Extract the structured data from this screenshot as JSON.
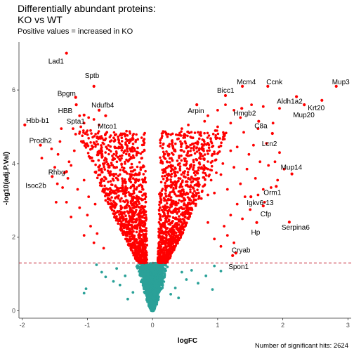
{
  "chart_data": {
    "type": "scatter",
    "title_lines": [
      "Differentially abundant proteins:",
      "KO vs WT"
    ],
    "subtitle": "Positive values = increased in KO",
    "caption": "Number of significant hits: 2624",
    "xlabel": "logFC",
    "ylabel": "-log10(adj.P.Val)",
    "xlim": [
      -2.05,
      3.05
    ],
    "ylim": [
      -0.2,
      7.3
    ],
    "x_ticks": [
      -2,
      -1,
      0,
      1,
      2,
      3
    ],
    "y_ticks": [
      0,
      2,
      4,
      6
    ],
    "threshold": 1.3,
    "colors": {
      "significant": "#ff0000",
      "not_significant": "#2aa198",
      "threshold_line": "#c21b2d"
    },
    "labeled_points": [
      {
        "label": "Lad1",
        "x": -1.32,
        "y": 7.0
      },
      {
        "label": "Sptb",
        "x": -0.9,
        "y": 6.1
      },
      {
        "label": "Bpgm",
        "x": -1.18,
        "y": 5.8
      },
      {
        "label": "HBB",
        "x": -1.17,
        "y": 5.6
      },
      {
        "label": "Ndufb4",
        "x": -0.82,
        "y": 5.45
      },
      {
        "label": "Spta1",
        "x": -1.05,
        "y": 5.32
      },
      {
        "label": "Mtco1",
        "x": -0.72,
        "y": 5.3
      },
      {
        "label": "Hbb-b1",
        "x": -1.96,
        "y": 5.05
      },
      {
        "label": "Prodh2",
        "x": -1.72,
        "y": 4.5
      },
      {
        "label": "Rhbg",
        "x": -1.32,
        "y": 3.78
      },
      {
        "label": "Isoc2b",
        "x": -1.54,
        "y": 3.65
      },
      {
        "label": "Bicc1",
        "x": 1.12,
        "y": 5.85
      },
      {
        "label": "Arpin",
        "x": 0.68,
        "y": 5.6
      },
      {
        "label": "Hmgb2",
        "x": 1.37,
        "y": 5.5
      },
      {
        "label": "Mcm4",
        "x": 1.38,
        "y": 6.1
      },
      {
        "label": "Ccnk",
        "x": 1.77,
        "y": 6.1
      },
      {
        "label": "Aldh1a2",
        "x": 2.21,
        "y": 5.82
      },
      {
        "label": "Mup3",
        "x": 2.82,
        "y": 6.1
      },
      {
        "label": "Krt20",
        "x": 2.6,
        "y": 5.72
      },
      {
        "label": "Mup20",
        "x": 2.33,
        "y": 5.6
      },
      {
        "label": "C8a",
        "x": 1.63,
        "y": 5.15
      },
      {
        "label": "Lcn2",
        "x": 1.84,
        "y": 4.82
      },
      {
        "label": "Mup14",
        "x": 2.14,
        "y": 3.72
      },
      {
        "label": "Orm1",
        "x": 1.9,
        "y": 3.38
      },
      {
        "label": "Igkv6-13",
        "x": 1.51,
        "y": 3.1
      },
      {
        "label": "Cfp",
        "x": 1.7,
        "y": 2.85
      },
      {
        "label": "Serpina6",
        "x": 2.1,
        "y": 2.41
      },
      {
        "label": "Hp",
        "x": 1.6,
        "y": 2.4
      },
      {
        "label": "Cryab",
        "x": 1.28,
        "y": 1.57
      },
      {
        "label": "Spon1",
        "x": 1.23,
        "y": 1.5
      }
    ],
    "significant_points": [
      [
        -1.7,
        4.15
      ],
      [
        -1.55,
        4.4
      ],
      [
        -1.45,
        4.25
      ],
      [
        -1.5,
        3.9
      ],
      [
        -1.35,
        3.75
      ],
      [
        -1.42,
        4.6
      ],
      [
        -1.38,
        3.35
      ],
      [
        -1.3,
        3.6
      ],
      [
        -1.28,
        4.05
      ],
      [
        -1.25,
        3.95
      ],
      [
        -1.2,
        4.35
      ],
      [
        -1.18,
        4.8
      ],
      [
        -1.1,
        5.0
      ],
      [
        -1.05,
        5.1
      ],
      [
        -1.0,
        4.5
      ],
      [
        -0.95,
        4.9
      ],
      [
        -0.9,
        5.2
      ],
      [
        -0.85,
        4.7
      ],
      [
        -0.82,
        5.05
      ],
      [
        -0.8,
        4.3
      ],
      [
        -0.7,
        4.85
      ],
      [
        -0.65,
        4.6
      ],
      [
        -0.6,
        4.15
      ],
      [
        -1.15,
        3.3
      ],
      [
        -1.05,
        3.55
      ],
      [
        -0.98,
        3.1
      ],
      [
        -1.12,
        2.8
      ],
      [
        -1.0,
        2.6
      ],
      [
        -0.88,
        2.9
      ],
      [
        -0.78,
        3.4
      ],
      [
        -0.72,
        3.0
      ],
      [
        -0.95,
        2.3
      ],
      [
        -1.25,
        2.55
      ],
      [
        -1.32,
        2.95
      ],
      [
        -1.05,
        2.05
      ],
      [
        -0.85,
        2.1
      ],
      [
        -0.9,
        1.85
      ],
      [
        -0.75,
        1.7
      ],
      [
        -0.62,
        3.7
      ],
      [
        -0.58,
        4.45
      ],
      [
        -0.55,
        3.9
      ],
      [
        -0.5,
        4.2
      ],
      [
        -1.12,
        5.3
      ],
      [
        -0.98,
        5.25
      ],
      [
        -1.22,
        4.95
      ],
      [
        -1.4,
        4.95
      ],
      [
        -1.46,
        3.45
      ],
      [
        -1.48,
        2.95
      ],
      [
        0.55,
        5.05
      ],
      [
        0.62,
        4.7
      ],
      [
        0.7,
        4.85
      ],
      [
        0.8,
        5.15
      ],
      [
        0.9,
        4.6
      ],
      [
        1.0,
        5.0
      ],
      [
        1.1,
        4.75
      ],
      [
        1.2,
        5.1
      ],
      [
        1.3,
        4.45
      ],
      [
        1.4,
        4.85
      ],
      [
        1.48,
        4.25
      ],
      [
        1.55,
        4.5
      ],
      [
        1.62,
        4.95
      ],
      [
        1.65,
        4.05
      ],
      [
        1.58,
        3.6
      ],
      [
        1.45,
        3.85
      ],
      [
        1.35,
        3.45
      ],
      [
        1.25,
        3.9
      ],
      [
        1.15,
        3.3
      ],
      [
        1.05,
        3.7
      ],
      [
        0.95,
        3.2
      ],
      [
        1.3,
        2.9
      ],
      [
        1.42,
        3.1
      ],
      [
        1.2,
        2.6
      ],
      [
        1.1,
        2.3
      ],
      [
        1.38,
        2.5
      ],
      [
        1.5,
        2.75
      ],
      [
        1.78,
        3.95
      ],
      [
        1.88,
        4.05
      ],
      [
        2.02,
        3.85
      ],
      [
        1.92,
        3.55
      ],
      [
        1.7,
        3.3
      ],
      [
        1.72,
        2.95
      ],
      [
        1.82,
        3.35
      ],
      [
        1.62,
        3.15
      ],
      [
        1.15,
        2.05
      ],
      [
        0.95,
        1.95
      ],
      [
        1.05,
        1.75
      ],
      [
        1.25,
        1.85
      ],
      [
        0.85,
        2.4
      ],
      [
        1.25,
        5.45
      ],
      [
        1.35,
        5.25
      ],
      [
        1.52,
        5.6
      ],
      [
        1.7,
        5.55
      ],
      [
        1.85,
        5.1
      ],
      [
        0.5,
        4.6
      ],
      [
        0.45,
        4.95
      ],
      [
        1.75,
        4.55
      ],
      [
        1.95,
        4.3
      ],
      [
        1.0,
        5.45
      ],
      [
        1.12,
        5.6
      ],
      [
        0.85,
        5.3
      ],
      [
        0.92,
        4.25
      ],
      [
        0.98,
        3.75
      ],
      [
        1.08,
        4.0
      ],
      [
        1.2,
        4.35
      ],
      [
        1.02,
        4.45
      ],
      [
        0.75,
        4.4
      ],
      [
        0.8,
        3.9
      ],
      [
        0.68,
        4.1
      ],
      [
        0.7,
        3.5
      ],
      [
        0.58,
        3.95
      ],
      [
        0.62,
        3.35
      ],
      [
        0.75,
        3.05
      ],
      [
        0.85,
        3.15
      ],
      [
        0.9,
        3.55
      ],
      [
        0.55,
        3.6
      ],
      [
        0.58,
        2.9
      ],
      [
        1.95,
        5.5
      ]
    ],
    "nonsignificant_points": [
      [
        -1.02,
        0.6
      ],
      [
        -1.05,
        0.48
      ],
      [
        -0.86,
        1.25
      ],
      [
        -0.78,
        1.05
      ],
      [
        -0.72,
        0.92
      ],
      [
        -0.6,
        0.8
      ],
      [
        -0.55,
        1.15
      ],
      [
        -0.5,
        0.7
      ],
      [
        -0.42,
        0.95
      ],
      [
        0.45,
        1.05
      ],
      [
        0.52,
        0.85
      ],
      [
        0.6,
        1.1
      ],
      [
        0.7,
        0.75
      ],
      [
        0.82,
        0.95
      ],
      [
        0.95,
        1.22
      ],
      [
        1.05,
        1.08
      ],
      [
        0.35,
        0.62
      ],
      [
        0.28,
        0.45
      ],
      [
        0.4,
        0.35
      ],
      [
        -0.3,
        0.5
      ],
      [
        -0.38,
        0.32
      ],
      [
        0.92,
        0.58
      ]
    ]
  }
}
